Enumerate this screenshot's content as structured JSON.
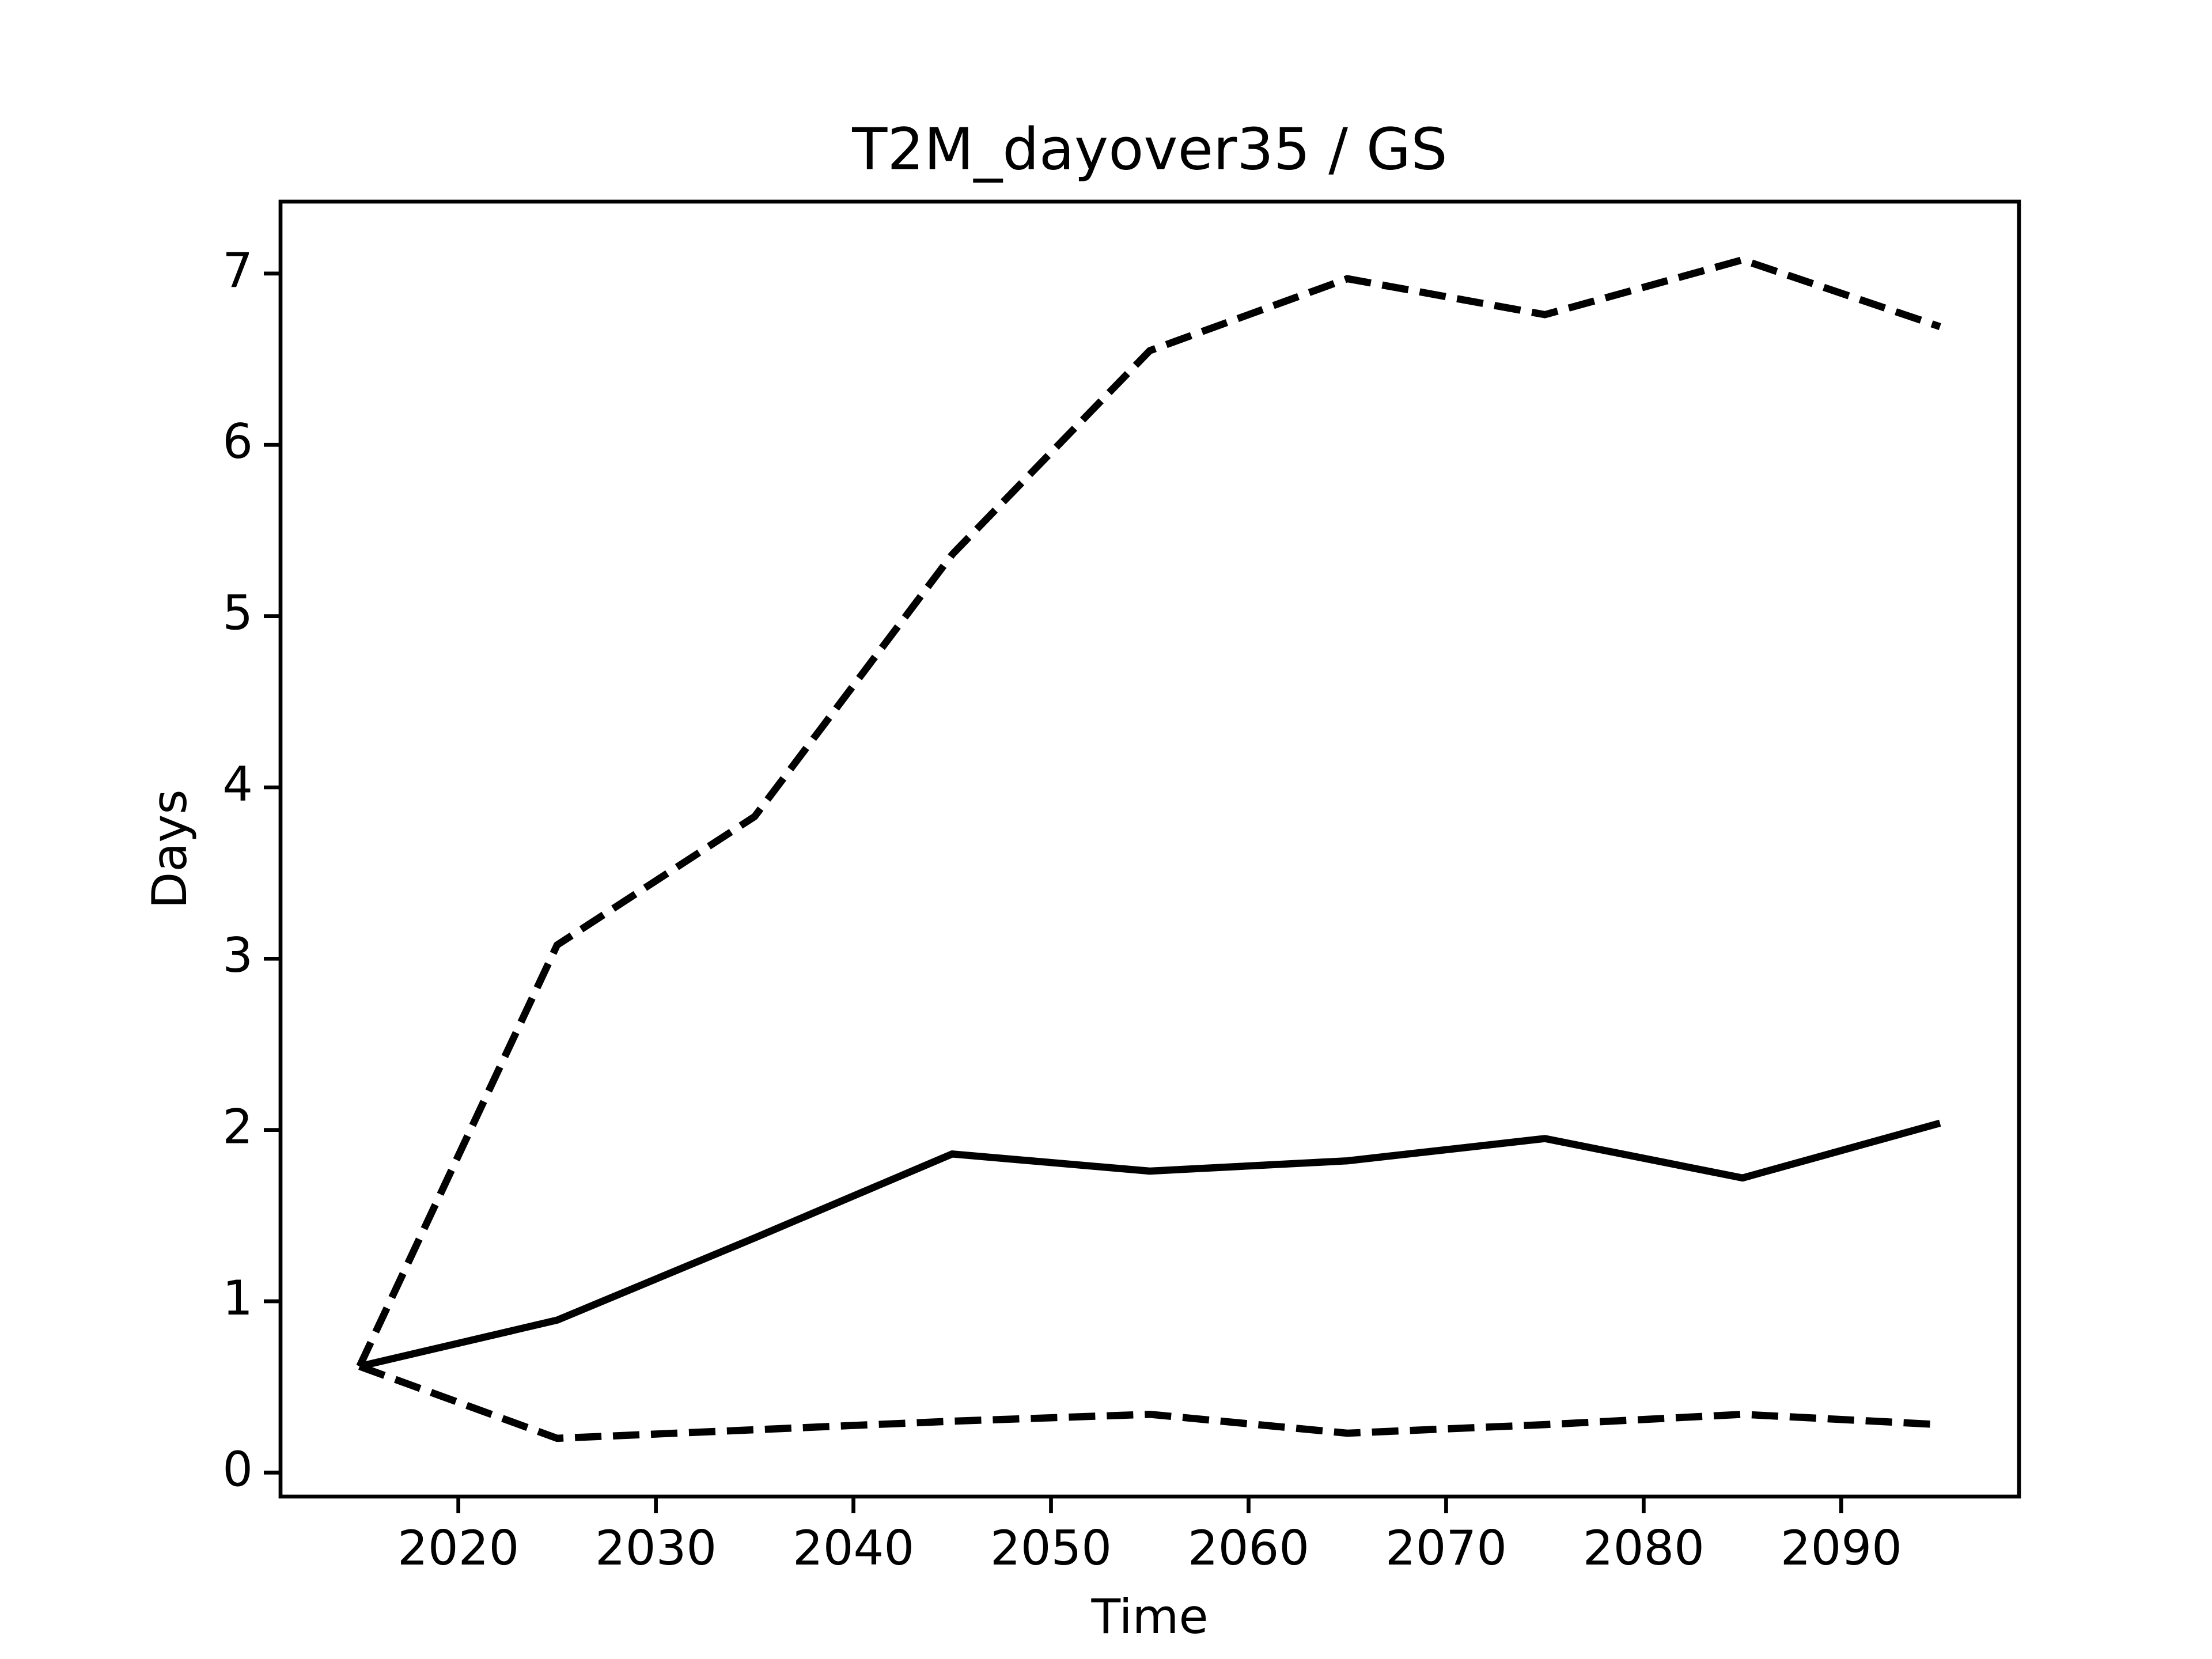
{
  "chart_data": {
    "type": "line",
    "title": "T2M_dayover35 / GS",
    "x_label": "Time",
    "y_label": "Days",
    "x": [
      2015,
      2025,
      2035,
      2045,
      2055,
      2065,
      2075,
      2085,
      2095
    ],
    "series": [
      {
        "color": "#000000",
        "dashed": false,
        "values": [
          0.62,
          0.89,
          1.37,
          1.86,
          1.76,
          1.82,
          1.95,
          1.72,
          2.04
        ]
      },
      {
        "color": "#000000",
        "dashed": true,
        "values": [
          0.62,
          3.08,
          3.83,
          5.36,
          6.55,
          6.97,
          6.76,
          7.08,
          6.69
        ]
      },
      {
        "color": "#000000",
        "dashed": true,
        "values": [
          0.62,
          0.2,
          0.25,
          0.3,
          0.34,
          0.23,
          0.28,
          0.34,
          0.28
        ]
      }
    ],
    "xlim": [
      2011,
      2099
    ],
    "xticks": [
      2020,
      2030,
      2040,
      2050,
      2060,
      2070,
      2080,
      2090
    ],
    "ylim": [
      -0.14,
      7.42
    ],
    "yticks": [
      0,
      1,
      2,
      3,
      4,
      5,
      6,
      7
    ],
    "grid": false
  }
}
